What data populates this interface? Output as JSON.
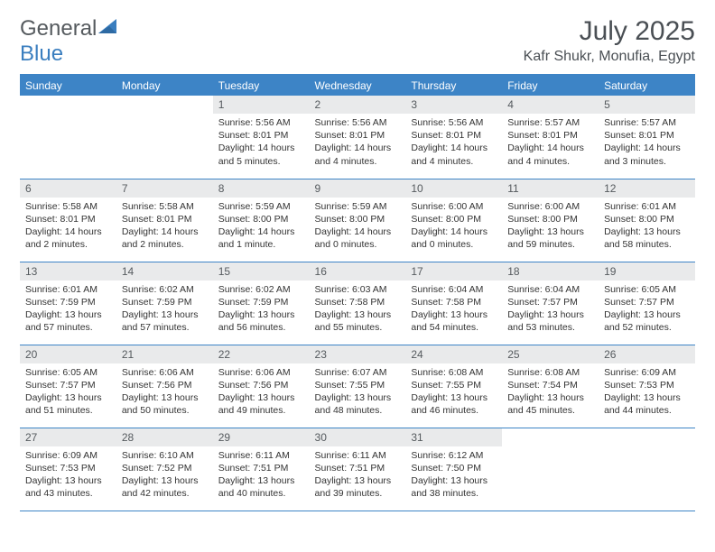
{
  "logo": {
    "general": "General",
    "blue": "Blue"
  },
  "title": "July 2025",
  "location": "Kafr Shukr, Monufia, Egypt",
  "colors": {
    "header_bg": "#3d84c6",
    "header_text": "#ffffff",
    "daynum_bg": "#e9eaeb",
    "daynum_text": "#555a5e",
    "body_text": "#333333",
    "logo_general": "#555a5e",
    "logo_blue": "#3a7ebf",
    "rule": "#3d84c6"
  },
  "weekdays": [
    "Sunday",
    "Monday",
    "Tuesday",
    "Wednesday",
    "Thursday",
    "Friday",
    "Saturday"
  ],
  "weeks": [
    [
      null,
      null,
      {
        "n": "1",
        "sr": "5:56 AM",
        "ss": "8:01 PM",
        "dl": "14 hours and 5 minutes."
      },
      {
        "n": "2",
        "sr": "5:56 AM",
        "ss": "8:01 PM",
        "dl": "14 hours and 4 minutes."
      },
      {
        "n": "3",
        "sr": "5:56 AM",
        "ss": "8:01 PM",
        "dl": "14 hours and 4 minutes."
      },
      {
        "n": "4",
        "sr": "5:57 AM",
        "ss": "8:01 PM",
        "dl": "14 hours and 4 minutes."
      },
      {
        "n": "5",
        "sr": "5:57 AM",
        "ss": "8:01 PM",
        "dl": "14 hours and 3 minutes."
      }
    ],
    [
      {
        "n": "6",
        "sr": "5:58 AM",
        "ss": "8:01 PM",
        "dl": "14 hours and 2 minutes."
      },
      {
        "n": "7",
        "sr": "5:58 AM",
        "ss": "8:01 PM",
        "dl": "14 hours and 2 minutes."
      },
      {
        "n": "8",
        "sr": "5:59 AM",
        "ss": "8:00 PM",
        "dl": "14 hours and 1 minute."
      },
      {
        "n": "9",
        "sr": "5:59 AM",
        "ss": "8:00 PM",
        "dl": "14 hours and 0 minutes."
      },
      {
        "n": "10",
        "sr": "6:00 AM",
        "ss": "8:00 PM",
        "dl": "14 hours and 0 minutes."
      },
      {
        "n": "11",
        "sr": "6:00 AM",
        "ss": "8:00 PM",
        "dl": "13 hours and 59 minutes."
      },
      {
        "n": "12",
        "sr": "6:01 AM",
        "ss": "8:00 PM",
        "dl": "13 hours and 58 minutes."
      }
    ],
    [
      {
        "n": "13",
        "sr": "6:01 AM",
        "ss": "7:59 PM",
        "dl": "13 hours and 57 minutes."
      },
      {
        "n": "14",
        "sr": "6:02 AM",
        "ss": "7:59 PM",
        "dl": "13 hours and 57 minutes."
      },
      {
        "n": "15",
        "sr": "6:02 AM",
        "ss": "7:59 PM",
        "dl": "13 hours and 56 minutes."
      },
      {
        "n": "16",
        "sr": "6:03 AM",
        "ss": "7:58 PM",
        "dl": "13 hours and 55 minutes."
      },
      {
        "n": "17",
        "sr": "6:04 AM",
        "ss": "7:58 PM",
        "dl": "13 hours and 54 minutes."
      },
      {
        "n": "18",
        "sr": "6:04 AM",
        "ss": "7:57 PM",
        "dl": "13 hours and 53 minutes."
      },
      {
        "n": "19",
        "sr": "6:05 AM",
        "ss": "7:57 PM",
        "dl": "13 hours and 52 minutes."
      }
    ],
    [
      {
        "n": "20",
        "sr": "6:05 AM",
        "ss": "7:57 PM",
        "dl": "13 hours and 51 minutes."
      },
      {
        "n": "21",
        "sr": "6:06 AM",
        "ss": "7:56 PM",
        "dl": "13 hours and 50 minutes."
      },
      {
        "n": "22",
        "sr": "6:06 AM",
        "ss": "7:56 PM",
        "dl": "13 hours and 49 minutes."
      },
      {
        "n": "23",
        "sr": "6:07 AM",
        "ss": "7:55 PM",
        "dl": "13 hours and 48 minutes."
      },
      {
        "n": "24",
        "sr": "6:08 AM",
        "ss": "7:55 PM",
        "dl": "13 hours and 46 minutes."
      },
      {
        "n": "25",
        "sr": "6:08 AM",
        "ss": "7:54 PM",
        "dl": "13 hours and 45 minutes."
      },
      {
        "n": "26",
        "sr": "6:09 AM",
        "ss": "7:53 PM",
        "dl": "13 hours and 44 minutes."
      }
    ],
    [
      {
        "n": "27",
        "sr": "6:09 AM",
        "ss": "7:53 PM",
        "dl": "13 hours and 43 minutes."
      },
      {
        "n": "28",
        "sr": "6:10 AM",
        "ss": "7:52 PM",
        "dl": "13 hours and 42 minutes."
      },
      {
        "n": "29",
        "sr": "6:11 AM",
        "ss": "7:51 PM",
        "dl": "13 hours and 40 minutes."
      },
      {
        "n": "30",
        "sr": "6:11 AM",
        "ss": "7:51 PM",
        "dl": "13 hours and 39 minutes."
      },
      {
        "n": "31",
        "sr": "6:12 AM",
        "ss": "7:50 PM",
        "dl": "13 hours and 38 minutes."
      },
      null,
      null
    ]
  ],
  "labels": {
    "sunrise": "Sunrise:",
    "sunset": "Sunset:",
    "daylight": "Daylight:"
  }
}
